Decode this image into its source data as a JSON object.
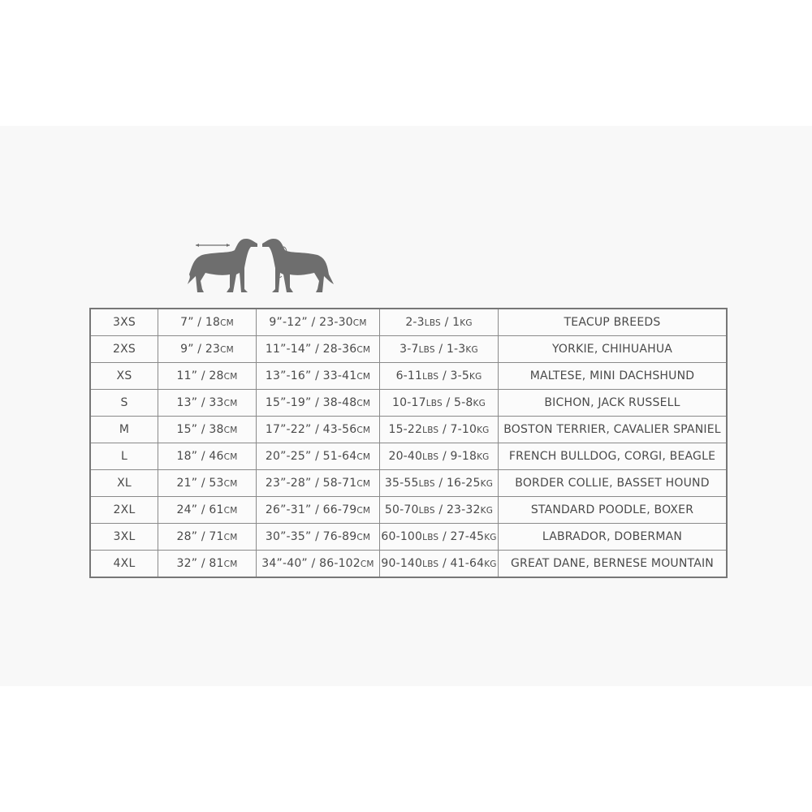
{
  "colors": {
    "text": "#4a4a4a",
    "border": "#8a8a8a",
    "dog": "#6e6e6e",
    "band": "#f8f8f8"
  },
  "illustration": {
    "icons": [
      "dog-back-length-icon",
      "dog-neck-chest-icon"
    ]
  },
  "rows": [
    {
      "size": "3XS",
      "back": {
        "n": "7” / 18",
        "u": "CM"
      },
      "chest": {
        "n": "9”-12” / 23-30",
        "u": "CM"
      },
      "weight": {
        "a": "2-3",
        "au": "LBS",
        "b": " / 1",
        "bu": "KG"
      },
      "breeds": "TEACUP BREEDS"
    },
    {
      "size": "2XS",
      "back": {
        "n": "9” / 23",
        "u": "CM"
      },
      "chest": {
        "n": "11”-14” / 28-36",
        "u": "CM"
      },
      "weight": {
        "a": "3-7",
        "au": "LBS",
        "b": " / 1-3",
        "bu": "KG"
      },
      "breeds": "YORKIE, CHIHUAHUA"
    },
    {
      "size": "XS",
      "back": {
        "n": "11” / 28",
        "u": "CM"
      },
      "chest": {
        "n": "13”-16” / 33-41",
        "u": "CM"
      },
      "weight": {
        "a": "6-11",
        "au": "LBS",
        "b": " / 3-5",
        "bu": "KG"
      },
      "breeds": "MALTESE, MINI DACHSHUND"
    },
    {
      "size": "S",
      "back": {
        "n": "13” / 33",
        "u": "CM"
      },
      "chest": {
        "n": "15”-19” / 38-48",
        "u": "CM"
      },
      "weight": {
        "a": "10-17",
        "au": "LBS",
        "b": " / 5-8",
        "bu": "KG"
      },
      "breeds": "BICHON, JACK RUSSELL"
    },
    {
      "size": "M",
      "back": {
        "n": "15” / 38",
        "u": "CM"
      },
      "chest": {
        "n": "17”-22” / 43-56",
        "u": "CM"
      },
      "weight": {
        "a": "15-22",
        "au": "LBS",
        "b": " / 7-10",
        "bu": "KG"
      },
      "breeds": "BOSTON TERRIER, CAVALIER SPANIEL"
    },
    {
      "size": "L",
      "back": {
        "n": "18” / 46",
        "u": "CM"
      },
      "chest": {
        "n": "20”-25” / 51-64",
        "u": "CM"
      },
      "weight": {
        "a": "20-40",
        "au": "LBS",
        "b": " / 9-18",
        "bu": "KG"
      },
      "breeds": "FRENCH BULLDOG, CORGI, BEAGLE"
    },
    {
      "size": "XL",
      "back": {
        "n": "21” / 53",
        "u": "CM"
      },
      "chest": {
        "n": "23”-28” / 58-71",
        "u": "CM"
      },
      "weight": {
        "a": "35-55",
        "au": "LBS",
        "b": " / 16-25",
        "bu": "KG"
      },
      "breeds": "BORDER COLLIE, BASSET HOUND"
    },
    {
      "size": "2XL",
      "back": {
        "n": "24” / 61",
        "u": "CM"
      },
      "chest": {
        "n": "26”-31” / 66-79",
        "u": "CM"
      },
      "weight": {
        "a": "50-70",
        "au": "LBS",
        "b": " / 23-32",
        "bu": "KG"
      },
      "breeds": "STANDARD POODLE, BOXER"
    },
    {
      "size": "3XL",
      "back": {
        "n": "28” / 71",
        "u": "CM"
      },
      "chest": {
        "n": "30”-35” / 76-89",
        "u": "CM"
      },
      "weight": {
        "a": "60-100",
        "au": "LBS",
        "b": " / 27-45",
        "bu": "KG"
      },
      "breeds": "LABRADOR, DOBERMAN"
    },
    {
      "size": "4XL",
      "back": {
        "n": "32” / 81",
        "u": "CM"
      },
      "chest": {
        "n": "34”-40” / 86-102",
        "u": "CM"
      },
      "weight": {
        "a": "90-140",
        "au": "LBS",
        "b": " / 41-64",
        "bu": "KG"
      },
      "breeds": "GREAT DANE, BERNESE MOUNTAIN"
    }
  ]
}
